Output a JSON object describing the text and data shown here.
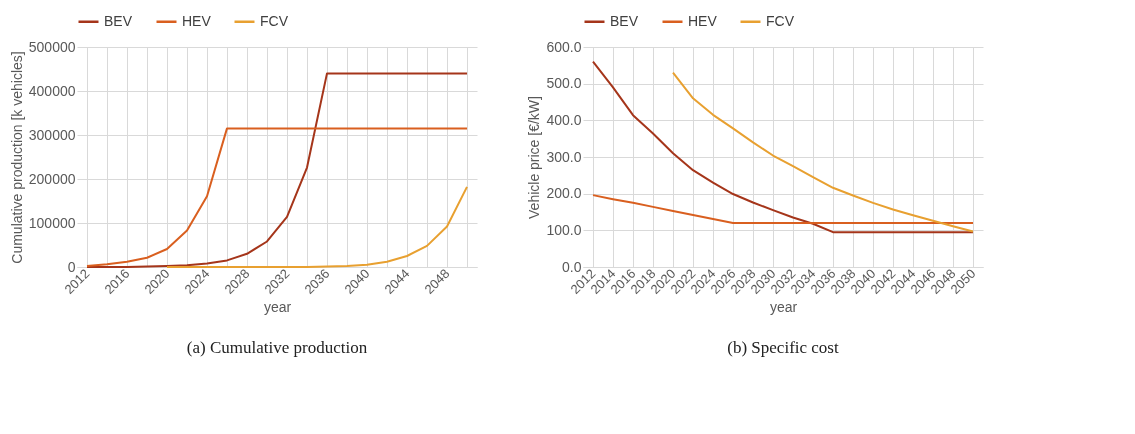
{
  "chart_data": [
    {
      "type": "line",
      "xlabel": "year",
      "ylabel": "Cumulative production [k vehicles]",
      "annotations": [
        "(a)  Cumulative production"
      ],
      "categories": [
        "2012",
        null,
        "2016",
        null,
        "2020",
        null,
        "2024",
        null,
        "2028",
        null,
        "2032",
        null,
        "2036",
        null,
        "2040",
        null,
        "2044",
        null,
        "2048",
        null
      ],
      "series": [
        {
          "name": "BEV",
          "color": "#a5351a",
          "values": [
            0,
            0,
            0,
            1000,
            2000,
            4000,
            8000,
            15000,
            30000,
            58000,
            114000,
            226000,
            440000,
            440000,
            440000,
            440000,
            440000,
            440000,
            440000,
            440000
          ]
        },
        {
          "name": "HEV",
          "color": "#d95f1f",
          "values": [
            2000,
            6000,
            12000,
            21000,
            41000,
            83000,
            161000,
            315000,
            315000,
            315000,
            315000,
            315000,
            315000,
            315000,
            315000,
            315000,
            315000,
            315000,
            315000,
            315000
          ]
        },
        {
          "name": "FCV",
          "color": "#e8a030",
          "values": [
            null,
            null,
            null,
            null,
            0,
            0,
            0,
            0,
            0,
            0,
            0,
            0,
            1000,
            2000,
            5000,
            12000,
            25000,
            48000,
            92000,
            182000
          ]
        }
      ],
      "ylim": [
        0,
        500000
      ],
      "yticks": [
        0,
        100000,
        200000,
        300000,
        400000,
        500000
      ],
      "grid": true,
      "legend": "top"
    },
    {
      "type": "line",
      "xlabel": "year",
      "ylabel": "Vehicle price [€/kW]",
      "annotations": [
        "(b)  Specific cost"
      ],
      "categories": [
        "2012",
        "2014",
        "2016",
        "2018",
        "2020",
        "2022",
        "2024",
        "2026",
        "2028",
        "2030",
        "2032",
        "2034",
        "2036",
        "2038",
        "2040",
        "2042",
        "2044",
        "2046",
        "2048",
        "2050"
      ],
      "series": [
        {
          "name": "BEV",
          "color": "#a5351a",
          "values": [
            560,
            490,
            414,
            364,
            310,
            264,
            230,
            199,
            176,
            155,
            135,
            118,
            95,
            95,
            95,
            95,
            95,
            95,
            95,
            95
          ]
        },
        {
          "name": "HEV",
          "color": "#d95f1f",
          "values": [
            196,
            185,
            175,
            164,
            153,
            142,
            131,
            120,
            120,
            120,
            120,
            120,
            120,
            120,
            120,
            120,
            120,
            120,
            120,
            120
          ]
        },
        {
          "name": "FCV",
          "color": "#e8a030",
          "values": [
            null,
            null,
            null,
            null,
            530,
            460,
            415,
            378,
            340,
            304,
            275,
            245,
            216,
            195,
            175,
            157,
            141,
            126,
            111,
            97
          ]
        }
      ],
      "ylim": [
        0,
        600
      ],
      "yticks": [
        {
          "value": 0,
          "label": "0.0"
        },
        {
          "value": 100,
          "label": "100.0"
        },
        {
          "value": 200,
          "label": "200.0"
        },
        {
          "value": 300,
          "label": "300.0"
        },
        {
          "value": 400,
          "label": "400.0"
        },
        {
          "value": 500,
          "label": "500.0"
        },
        {
          "value": 600,
          "label": "600.0"
        }
      ],
      "grid": true,
      "legend": "top"
    }
  ]
}
